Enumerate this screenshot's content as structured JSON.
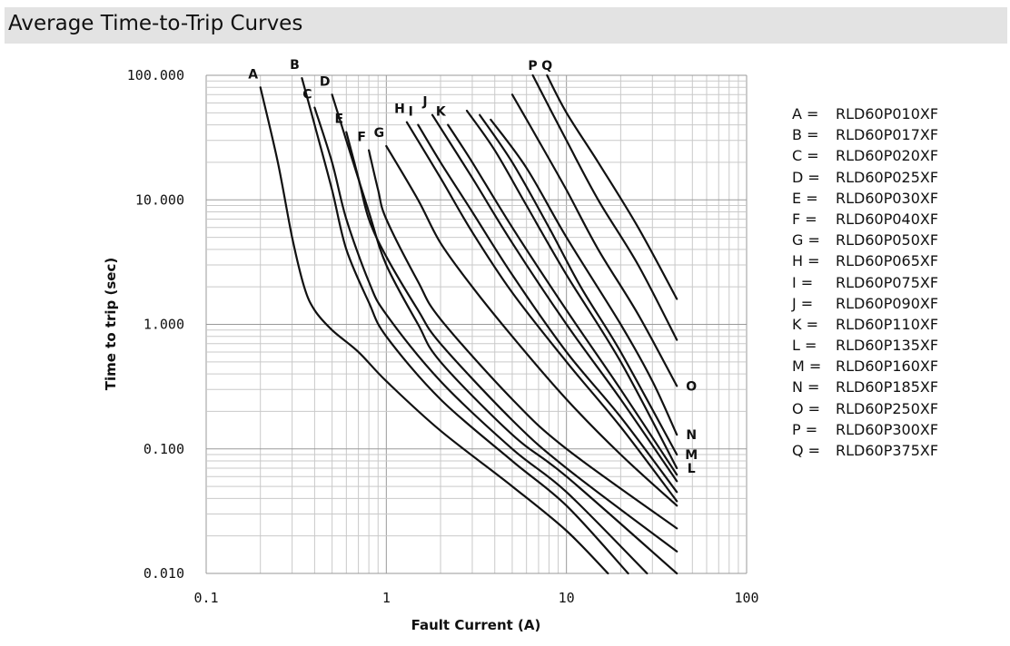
{
  "title": "Average Time-to-Trip Curves",
  "chart_data": {
    "type": "line",
    "xlabel": "Fault Current (A)",
    "ylabel": "Time to trip (sec)",
    "xscale": "log",
    "yscale": "log",
    "xlim": [
      0.1,
      100
    ],
    "ylim": [
      0.01,
      100
    ],
    "x_ticks": [
      "0.1",
      "1",
      "10",
      "100"
    ],
    "y_ticks": [
      "0.010",
      "0.100",
      "1.000",
      "10.000",
      "100.000"
    ],
    "grid": true,
    "legend_position": "right",
    "legend": [
      {
        "key": "A =",
        "value": "RLD60P010XF"
      },
      {
        "key": "B =",
        "value": "RLD60P017XF"
      },
      {
        "key": "C =",
        "value": "RLD60P020XF"
      },
      {
        "key": "D =",
        "value": "RLD60P025XF"
      },
      {
        "key": "E =",
        "value": "RLD60P030XF"
      },
      {
        "key": "F =",
        "value": "RLD60P040XF"
      },
      {
        "key": "G =",
        "value": "RLD60P050XF"
      },
      {
        "key": "H =",
        "value": "RLD60P065XF"
      },
      {
        "key": "I =",
        "value": "RLD60P075XF"
      },
      {
        "key": "J =",
        "value": "RLD60P090XF"
      },
      {
        "key": "K =",
        "value": "RLD60P110XF"
      },
      {
        "key": "L =",
        "value": "RLD60P135XF"
      },
      {
        "key": "M =",
        "value": "RLD60P160XF"
      },
      {
        "key": "N =",
        "value": "RLD60P185XF"
      },
      {
        "key": "O =",
        "value": "RLD60P250XF"
      },
      {
        "key": "P =",
        "value": "RLD60P300XF"
      },
      {
        "key": "Q =",
        "value": "RLD60P375XF"
      }
    ],
    "series": [
      {
        "name": "A",
        "points": [
          [
            0.2,
            80
          ],
          [
            0.25,
            20
          ],
          [
            0.3,
            5
          ],
          [
            0.35,
            2
          ],
          [
            0.4,
            1.3
          ],
          [
            0.5,
            0.9
          ],
          [
            0.7,
            0.6
          ],
          [
            1.0,
            0.35
          ],
          [
            2.0,
            0.14
          ],
          [
            5.0,
            0.05
          ],
          [
            10.0,
            0.022
          ],
          [
            17.0,
            0.01
          ]
        ]
      },
      {
        "name": "B",
        "points": [
          [
            0.34,
            95
          ],
          [
            0.4,
            40
          ],
          [
            0.5,
            12
          ],
          [
            0.6,
            4
          ],
          [
            0.8,
            1.5
          ],
          [
            1.0,
            0.8
          ],
          [
            2.0,
            0.25
          ],
          [
            5.0,
            0.08
          ],
          [
            10.0,
            0.035
          ],
          [
            22.0,
            0.01
          ]
        ]
      },
      {
        "name": "C",
        "points": [
          [
            0.4,
            55
          ],
          [
            0.5,
            20
          ],
          [
            0.6,
            7
          ],
          [
            0.8,
            2.2
          ],
          [
            1.0,
            1.2
          ],
          [
            2.0,
            0.35
          ],
          [
            5.0,
            0.1
          ],
          [
            10.0,
            0.045
          ],
          [
            28.0,
            0.01
          ]
        ]
      },
      {
        "name": "D",
        "points": [
          [
            0.5,
            70
          ],
          [
            0.6,
            30
          ],
          [
            0.8,
            8
          ],
          [
            1.0,
            3
          ],
          [
            1.5,
            1.0
          ],
          [
            2.0,
            0.5
          ],
          [
            5.0,
            0.13
          ],
          [
            10.0,
            0.06
          ],
          [
            41.0,
            0.01
          ]
        ]
      },
      {
        "name": "E",
        "points": [
          [
            0.6,
            35
          ],
          [
            0.7,
            15
          ],
          [
            0.8,
            7
          ],
          [
            1.0,
            3.5
          ],
          [
            1.5,
            1.3
          ],
          [
            2.0,
            0.7
          ],
          [
            5.0,
            0.17
          ],
          [
            10.0,
            0.07
          ],
          [
            41.0,
            0.015
          ]
        ]
      },
      {
        "name": "F",
        "points": [
          [
            0.8,
            25
          ],
          [
            0.9,
            12
          ],
          [
            1.0,
            7
          ],
          [
            1.5,
            2.2
          ],
          [
            2.0,
            1.1
          ],
          [
            5.0,
            0.25
          ],
          [
            10.0,
            0.1
          ],
          [
            41.0,
            0.023
          ]
        ]
      },
      {
        "name": "G",
        "points": [
          [
            1.0,
            27
          ],
          [
            1.5,
            10
          ],
          [
            2.0,
            4.5
          ],
          [
            3.0,
            2.0
          ],
          [
            5.0,
            0.8
          ],
          [
            10.0,
            0.25
          ],
          [
            20.0,
            0.09
          ],
          [
            41.0,
            0.035
          ]
        ]
      },
      {
        "name": "H",
        "points": [
          [
            1.3,
            42
          ],
          [
            2.0,
            15
          ],
          [
            3.0,
            5.5
          ],
          [
            5.0,
            1.8
          ],
          [
            10.0,
            0.5
          ],
          [
            20.0,
            0.15
          ],
          [
            41.0,
            0.038
          ]
        ]
      },
      {
        "name": "I",
        "points": [
          [
            1.5,
            40
          ],
          [
            2.0,
            20
          ],
          [
            3.0,
            8
          ],
          [
            5.0,
            2.5
          ],
          [
            10.0,
            0.6
          ],
          [
            20.0,
            0.18
          ],
          [
            41.0,
            0.045
          ]
        ]
      },
      {
        "name": "J",
        "points": [
          [
            1.8,
            48
          ],
          [
            3.0,
            15
          ],
          [
            5.0,
            4.5
          ],
          [
            10.0,
            1.0
          ],
          [
            20.0,
            0.25
          ],
          [
            41.0,
            0.055
          ]
        ]
      },
      {
        "name": "K",
        "points": [
          [
            2.2,
            40
          ],
          [
            3.0,
            20
          ],
          [
            5.0,
            6
          ],
          [
            10.0,
            1.3
          ],
          [
            20.0,
            0.3
          ],
          [
            41.0,
            0.062
          ]
        ]
      },
      {
        "name": "L",
        "points": [
          [
            2.8,
            52
          ],
          [
            4.0,
            25
          ],
          [
            6.0,
            9
          ],
          [
            10.0,
            2.5
          ],
          [
            20.0,
            0.5
          ],
          [
            41.0,
            0.07
          ]
        ]
      },
      {
        "name": "M",
        "points": [
          [
            3.3,
            48
          ],
          [
            5.0,
            20
          ],
          [
            8.0,
            6
          ],
          [
            12.0,
            2.0
          ],
          [
            20.0,
            0.6
          ],
          [
            41.0,
            0.09
          ]
        ]
      },
      {
        "name": "N",
        "points": [
          [
            3.8,
            44
          ],
          [
            6.0,
            18
          ],
          [
            10.0,
            5
          ],
          [
            20.0,
            1.0
          ],
          [
            30.0,
            0.35
          ],
          [
            41.0,
            0.13
          ]
        ]
      },
      {
        "name": "O",
        "points": [
          [
            5.0,
            70
          ],
          [
            7.0,
            30
          ],
          [
            10.0,
            12
          ],
          [
            15.0,
            4
          ],
          [
            25.0,
            1.2
          ],
          [
            41.0,
            0.32
          ]
        ]
      },
      {
        "name": "P",
        "points": [
          [
            6.5,
            100
          ],
          [
            10.0,
            30
          ],
          [
            15.0,
            10
          ],
          [
            25.0,
            3
          ],
          [
            41.0,
            0.75
          ]
        ]
      },
      {
        "name": "Q",
        "points": [
          [
            7.8,
            100
          ],
          [
            10.0,
            50
          ],
          [
            15.0,
            20
          ],
          [
            25.0,
            6
          ],
          [
            41.0,
            1.6
          ]
        ]
      }
    ]
  }
}
